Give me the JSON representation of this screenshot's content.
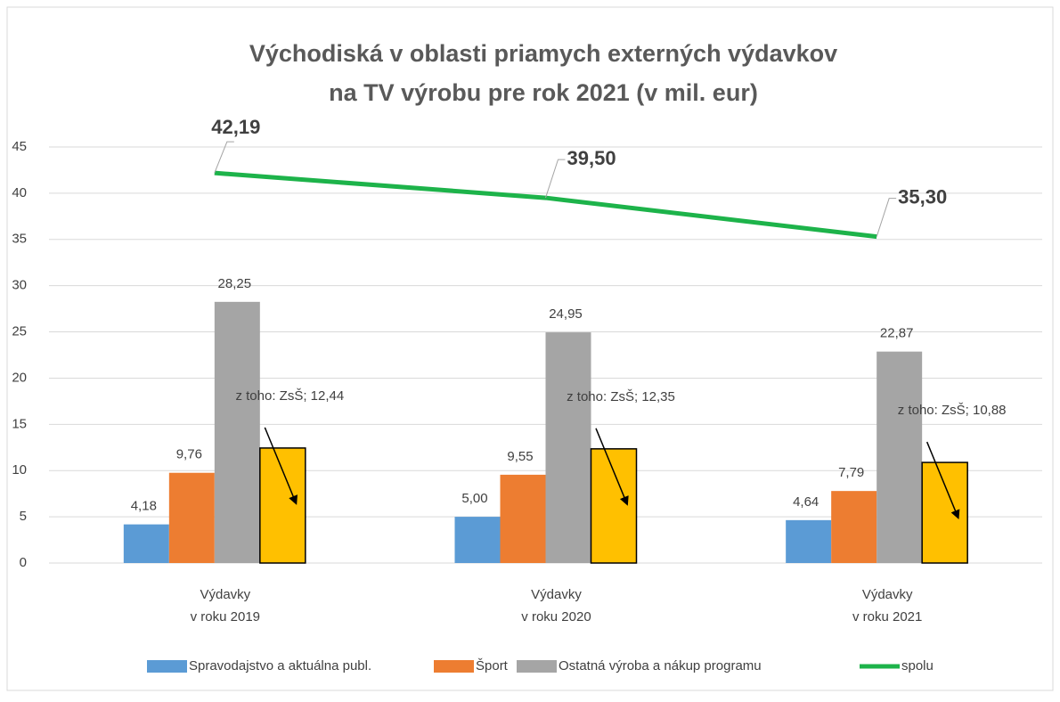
{
  "chart_data": {
    "type": "bar",
    "title": [
      "Východiská v oblasti priamych externých výdavkov",
      "na TV výrobu pre rok 2021 (v mil. eur)"
    ],
    "categories": [
      [
        "Výdavky",
        "v roku 2019"
      ],
      [
        "Výdavky",
        "v roku 2020"
      ],
      [
        "Výdavky",
        "v roku 2021"
      ]
    ],
    "ylim": [
      0,
      45
    ],
    "yticks": [
      0,
      5,
      10,
      15,
      20,
      25,
      30,
      35,
      40,
      45
    ],
    "grid": true,
    "legend": "bottom",
    "series": [
      {
        "name": "Spravodajstvo a aktuálna publ.",
        "color": "#5b9bd5",
        "values": [
          4.18,
          5.0,
          4.64
        ],
        "value_labels": [
          "4,18",
          "5,00",
          "4,64"
        ]
      },
      {
        "name": "Šport",
        "color": "#ed7d31",
        "values": [
          9.76,
          9.55,
          7.79
        ],
        "value_labels": [
          "9,76",
          "9,55",
          "7,79"
        ]
      },
      {
        "name": "Ostatná výroba a nákup programu",
        "color": "#a5a5a5",
        "values": [
          28.25,
          24.95,
          22.87
        ],
        "value_labels": [
          "28,25",
          "24,95",
          "22,87"
        ]
      },
      {
        "name": "z toho: ZsŠ",
        "color": "#ffc000",
        "in_legend": false,
        "values": [
          12.44,
          12.35,
          10.88
        ],
        "value_labels": [
          "z toho: ZsŠ; 12,44",
          "z toho: ZsŠ; 12,35",
          "z toho: ZsŠ; 10,88"
        ]
      },
      {
        "name": "spolu",
        "type": "line",
        "color": "#1db34a",
        "values": [
          42.19,
          39.5,
          35.3
        ],
        "value_labels": [
          "42,19",
          "39,50",
          "35,30"
        ]
      }
    ]
  }
}
